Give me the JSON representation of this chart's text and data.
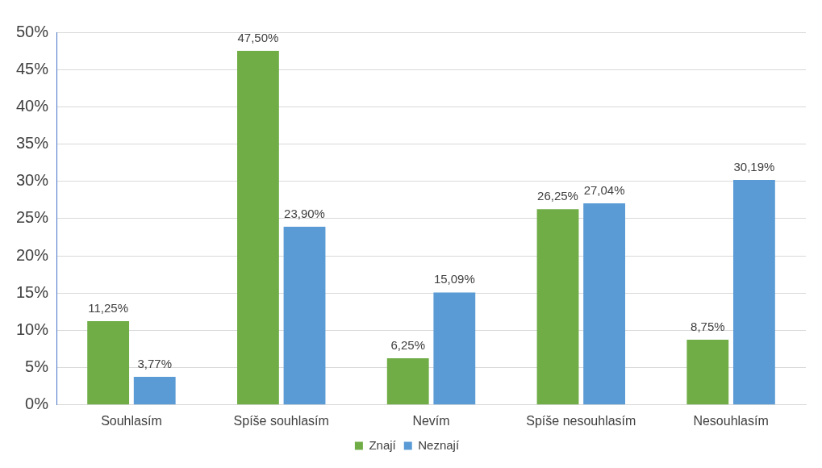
{
  "chart_data": {
    "type": "bar",
    "categories": [
      "Souhlasím",
      "Spíše souhlasím",
      "Nevím",
      "Spíše nesouhlasím",
      "Nesouhlasím"
    ],
    "series": [
      {
        "name": "Znají",
        "color": "#70ad47",
        "values": [
          11.25,
          47.5,
          6.25,
          26.25,
          8.75
        ],
        "value_labels": [
          "11,25%",
          "47,50%",
          "6,25%",
          "26,25%",
          "8,75%"
        ]
      },
      {
        "name": "Neznají",
        "color": "#5b9bd5",
        "values": [
          3.77,
          23.9,
          15.09,
          27.04,
          30.19
        ],
        "value_labels": [
          "3,77%",
          "23,90%",
          "15,09%",
          "27,04%",
          "30,19%"
        ]
      }
    ],
    "ylim": [
      0,
      50
    ],
    "yticks": [
      {
        "value": 0,
        "label": "0%"
      },
      {
        "value": 5,
        "label": "5%"
      },
      {
        "value": 10,
        "label": "10%"
      },
      {
        "value": 15,
        "label": "15%"
      },
      {
        "value": 20,
        "label": "20%"
      },
      {
        "value": 25,
        "label": "25%"
      },
      {
        "value": 30,
        "label": "30%"
      },
      {
        "value": 35,
        "label": "35%"
      },
      {
        "value": 40,
        "label": "40%"
      },
      {
        "value": 45,
        "label": "45%"
      },
      {
        "value": 50,
        "label": "50%"
      }
    ],
    "grid": "y",
    "legend": "bottom"
  }
}
